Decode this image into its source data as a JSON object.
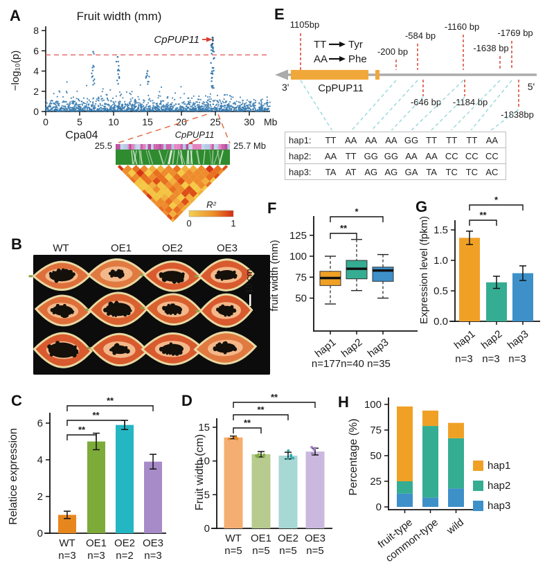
{
  "panels": {
    "A": "A",
    "B": "B",
    "C": "C",
    "D": "D",
    "E": "E",
    "F": "F",
    "G": "G",
    "H": "H"
  },
  "colors": {
    "manhattan_point": "#3A7CB0",
    "manhattan_dark": "#2E5E8F",
    "threshold_red": "#E05252",
    "accent_red": "#D9402E",
    "funnel_orange": "#E2653A",
    "hap1": "#F0A125",
    "hap2": "#35AD92",
    "hap3": "#3E90C9",
    "wt": "#E8861E",
    "oe1": "#7DAB39",
    "oe2": "#25B6C3",
    "oe3": "#A78BC8",
    "wt_light": "#F5AE72",
    "oe1_light": "#B6CB8D",
    "oe2_light": "#A8D8D4",
    "oe3_light": "#CAB8DF",
    "wt_dot": "#E8861E",
    "oe1_dot": "#7DAB39",
    "oe2_dot": "#2AA7B0",
    "oe3_dot": "#9B7FC1",
    "exon_orange": "#F1A83B",
    "gene_line": "#ABABAB",
    "ld_green": "#2E8B2E",
    "connector_teal": "#8FD4D8",
    "track_pinks": [
      "#E583C1",
      "#CE62AD",
      "#B8509F"
    ],
    "track_blues": [
      "#C5D4EB",
      "#B4C8E4",
      "#D4DFF0"
    ],
    "ld_palette": [
      "#F5C945",
      "#F2AF3C",
      "#EE8C2C",
      "#E8701F",
      "#DD4F16",
      "#D63415"
    ]
  },
  "panelA": {
    "title": "Fruit width (mm)",
    "ylabel": "−log₁₀(p)",
    "yticks": [
      "0",
      "2",
      "4",
      "6",
      "8"
    ],
    "xticks": [
      "0",
      "5",
      "10",
      "15",
      "20",
      "25",
      "30"
    ],
    "x_unit": "Mb",
    "chrom_label": "Cpa04",
    "gene_label": "CpPUP11",
    "zoom": {
      "left_label": "25.5",
      "right_label": "25.7 Mb",
      "gene_label": "CpPUP11",
      "colorbar_label": "R²",
      "colorbar_min": "0",
      "colorbar_max": "1"
    }
  },
  "panelB": {
    "col_labels": [
      "WT",
      "OE1",
      "OE2",
      "OE3"
    ],
    "scalebar_label": "10 cm"
  },
  "panelE": {
    "gene_label": "CpPUP11",
    "three_prime": "3'",
    "five_prime": "5'",
    "aa_change": {
      "from1": "TT",
      "to1": "Tyr",
      "from2": "AA",
      "to2": "Phe"
    },
    "snp_labels_above": [
      "1105bp",
      "-200 bp",
      "-584 bp",
      "-1160 bp",
      "-1638 bp",
      "-1769 bp"
    ],
    "snp_labels_below": [
      "-646 bp",
      "-1184 bp",
      "-1838bp"
    ],
    "haplotypes": [
      {
        "name": "hap1:",
        "alleles": [
          "TT",
          "AA",
          "AA",
          "AA",
          "GG",
          "TT",
          "TT",
          "TT",
          "AA"
        ]
      },
      {
        "name": "hap2:",
        "alleles": [
          "AA",
          "TT",
          "GG",
          "GG",
          "AA",
          "AA",
          "CC",
          "CC",
          "CC"
        ]
      },
      {
        "name": "hap3:",
        "alleles": [
          "TA",
          "AT",
          "AG",
          "AG",
          "GA",
          "TA",
          "TC",
          "TC",
          "AC"
        ]
      }
    ]
  },
  "chart_data": [
    {
      "panel": "A",
      "type": "scatter",
      "subtype": "manhattan",
      "title": "Fruit width (mm)",
      "xlabel": "Cpa04",
      "x_unit": "Mb",
      "ylabel": "−log₁₀(p)",
      "xlim": [
        0,
        33
      ],
      "ylim": [
        0,
        8
      ],
      "xticks": [
        0,
        5,
        10,
        15,
        20,
        25,
        30
      ],
      "yticks": [
        0,
        2,
        4,
        6,
        8
      ],
      "threshold": 5.6,
      "peak": {
        "label": "CpPUP11",
        "x_mb": 24.6,
        "max": 7.3
      },
      "minor_peaks": [
        {
          "x_mb": 7.0,
          "max": 5.9
        },
        {
          "x_mb": 10.6,
          "max": 5.4
        },
        {
          "x_mb": 15.0,
          "max": 4.0
        }
      ],
      "ld_zoom": {
        "start": "25.5",
        "end": "25.7 Mb",
        "gene": "CpPUP11",
        "r2": "R²",
        "scale": [
          "0",
          "1"
        ]
      }
    },
    {
      "panel": "C",
      "type": "bar",
      "ylabel": "Relatice expression",
      "categories": [
        "WT",
        "OE1",
        "OE2",
        "OE3"
      ],
      "n_labels": [
        "n=3",
        "n=3",
        "n=2",
        "n=3"
      ],
      "values": [
        1.0,
        5.0,
        5.9,
        3.9
      ],
      "errors": [
        0.2,
        0.45,
        0.25,
        0.4
      ],
      "yticks": [
        0,
        2,
        4,
        6
      ],
      "ylim": [
        0,
        7
      ],
      "significance": [
        {
          "from": 0,
          "to": 1,
          "label": "**"
        },
        {
          "from": 0,
          "to": 2,
          "label": "**"
        },
        {
          "from": 0,
          "to": 3,
          "label": "**"
        }
      ]
    },
    {
      "panel": "D",
      "type": "bar",
      "ylabel": "Fruit width (cm)",
      "categories": [
        "WT",
        "OE1",
        "OE2",
        "OE3"
      ],
      "n_labels": [
        "n=5",
        "n=5",
        "n=5",
        "n=5"
      ],
      "values": [
        13.5,
        11.0,
        10.8,
        11.4
      ],
      "errors": [
        0.2,
        0.4,
        0.5,
        0.5
      ],
      "yticks": [
        0,
        5,
        10,
        15
      ],
      "ylim": [
        0,
        17
      ],
      "show_points": true,
      "significance": [
        {
          "from": 0,
          "to": 1,
          "label": "**"
        },
        {
          "from": 0,
          "to": 2,
          "label": "**"
        },
        {
          "from": 0,
          "to": 3,
          "label": "**"
        }
      ]
    },
    {
      "panel": "F",
      "type": "boxplot",
      "ylabel": "fruit width (mm)",
      "categories": [
        "hap1",
        "hap2",
        "hap3"
      ],
      "n_labels": [
        "n=177",
        "n=40",
        "n=35"
      ],
      "yticks": [
        50,
        75,
        100,
        125
      ],
      "ylim": [
        38,
        135
      ],
      "boxes": [
        {
          "min": 43,
          "q1": 65,
          "median": 74,
          "q3": 82,
          "max": 100
        },
        {
          "min": 59,
          "q1": 73,
          "median": 85,
          "q3": 95,
          "max": 120
        },
        {
          "min": 50,
          "q1": 70,
          "median": 83,
          "q3": 87,
          "max": 102
        }
      ],
      "significance": [
        {
          "from": 0,
          "to": 1,
          "label": "**"
        },
        {
          "from": 0,
          "to": 2,
          "label": "*"
        }
      ]
    },
    {
      "panel": "G",
      "type": "bar",
      "ylabel": "Expression level (fpkm)",
      "categories": [
        "hap1",
        "hap2",
        "hap3"
      ],
      "n_labels": [
        "n=3",
        "n=3",
        "n=3"
      ],
      "values": [
        1.37,
        0.64,
        0.79
      ],
      "errors": [
        0.11,
        0.1,
        0.12
      ],
      "yticks": [
        "0.0",
        "0.5",
        "1.0",
        "1.5"
      ],
      "ylim": [
        0,
        1.7
      ],
      "significance": [
        {
          "from": 0,
          "to": 1,
          "label": "**"
        },
        {
          "from": 0,
          "to": 2,
          "label": "*"
        }
      ]
    },
    {
      "panel": "H",
      "type": "bar",
      "subtype": "stacked",
      "ylabel": "Percentage (%)",
      "categories": [
        "fruit-type",
        "common-type",
        "wild"
      ],
      "yticks": [
        0,
        25,
        50,
        75,
        100
      ],
      "ylim": [
        0,
        100
      ],
      "legend_position": "right",
      "series": [
        {
          "name": "hap1",
          "values": [
            73,
            15,
            15
          ]
        },
        {
          "name": "hap2",
          "values": [
            12,
            70,
            49
          ]
        },
        {
          "name": "hap3",
          "values": [
            13,
            9,
            18
          ]
        }
      ]
    }
  ]
}
